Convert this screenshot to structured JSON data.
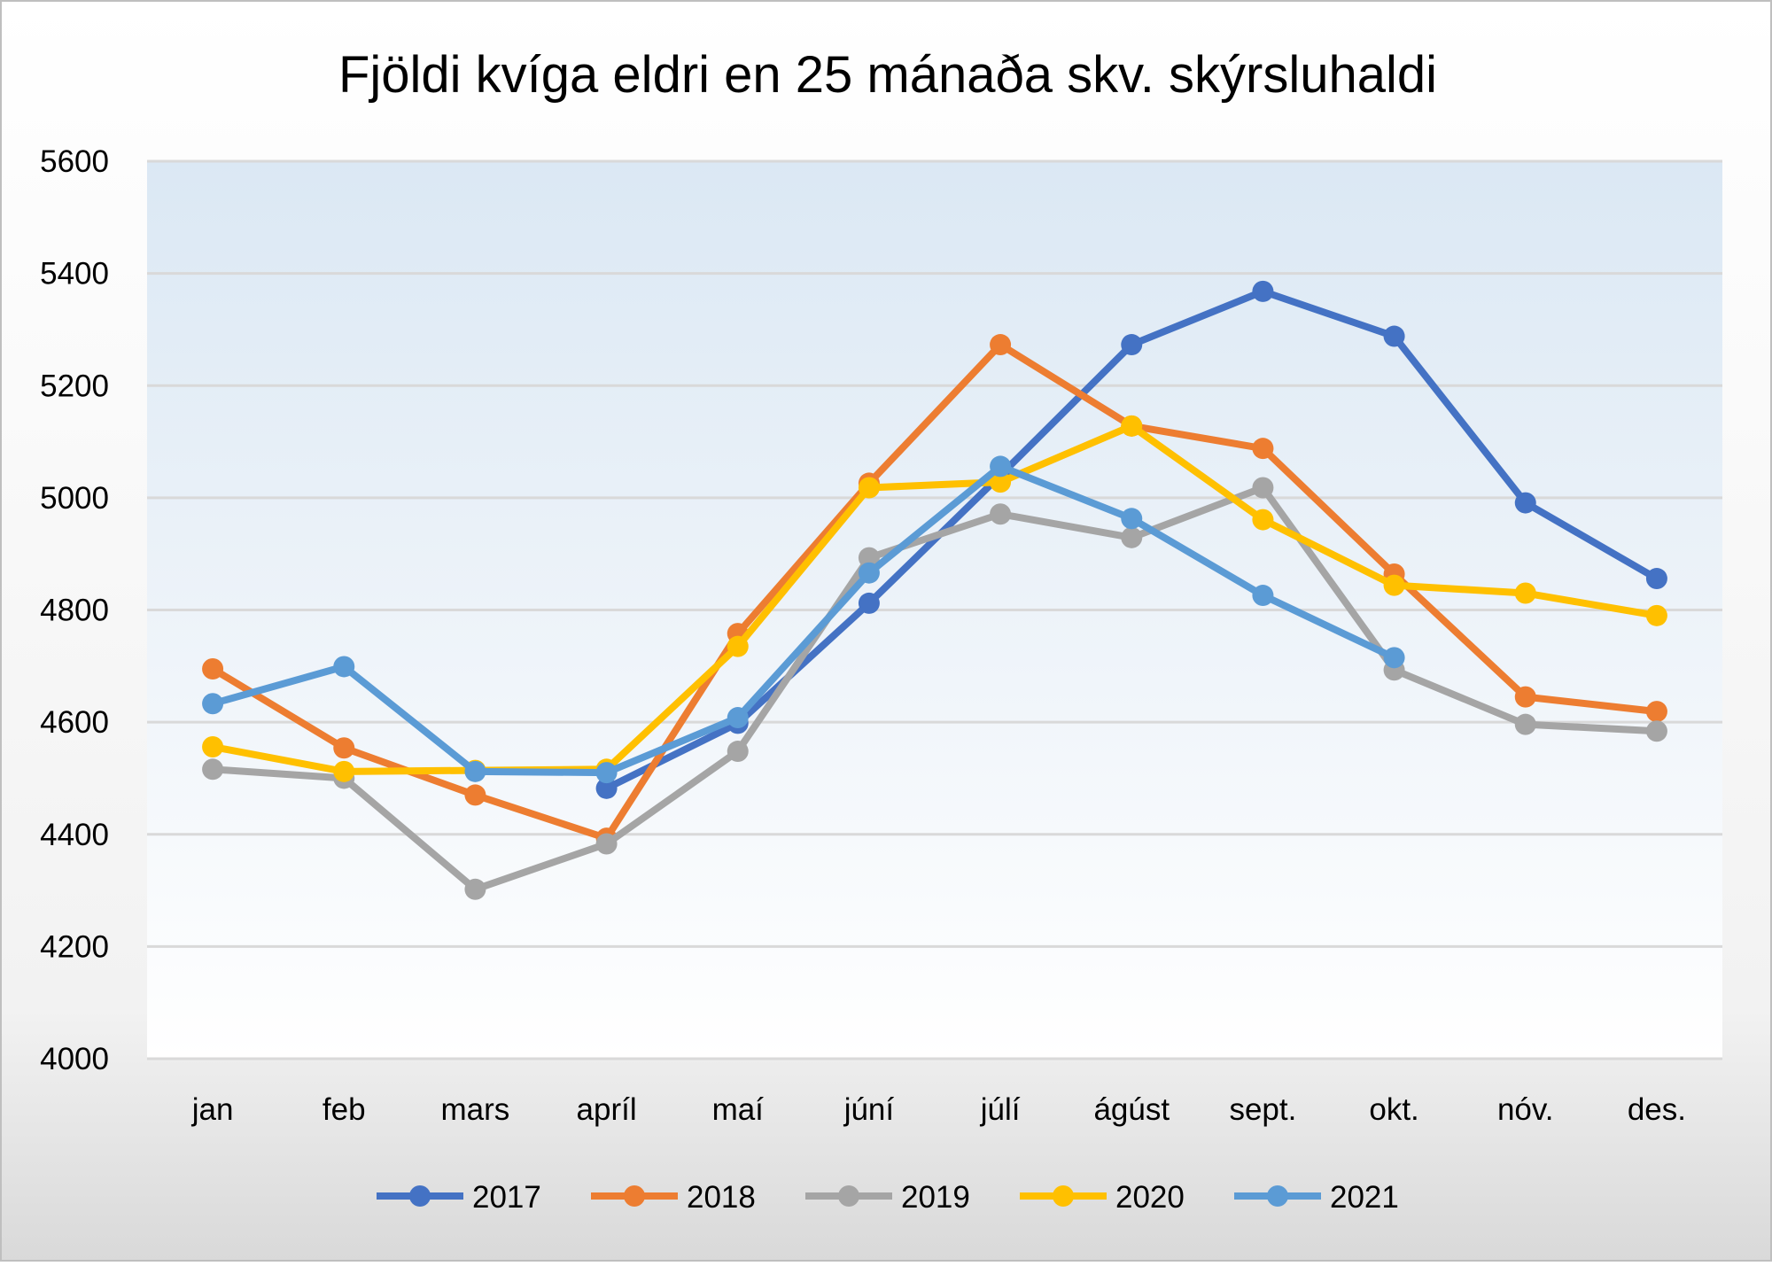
{
  "chart_data": {
    "type": "line",
    "title": "Fjöldi kvíga eldri en 25 mánaða skv. skýrsluhaldi",
    "xlabel": "",
    "ylabel": "",
    "ylim": [
      4000,
      5600
    ],
    "yticks": [
      "4000",
      "4200",
      "4400",
      "4600",
      "4800",
      "5000",
      "5200",
      "5400",
      "5600"
    ],
    "grid": true,
    "legend": "bottom",
    "categories": [
      "jan",
      "feb",
      "mars",
      "apríl",
      "maí",
      "júní",
      "júlí",
      "ágúst",
      "sept.",
      "okt.",
      "nóv.",
      "des."
    ],
    "series": [
      {
        "name": "2017",
        "color": "#4472C4",
        "values": [
          null,
          null,
          null,
          4482,
          4598,
          4812,
          5040,
          5273,
          5368,
          5288,
          4991,
          4856
        ]
      },
      {
        "name": "2018",
        "color": "#ED7D31",
        "values": [
          4695,
          4554,
          4470,
          4393,
          4758,
          5026,
          5273,
          5128,
          5088,
          4864,
          4645,
          4619
        ]
      },
      {
        "name": "2019",
        "color": "#A5A5A5",
        "values": [
          4516,
          4500,
          4302,
          4383,
          4548,
          4893,
          4971,
          4929,
          5018,
          4693,
          4596,
          4584
        ]
      },
      {
        "name": "2020",
        "color": "#FFC000",
        "values": [
          4556,
          4512,
          4514,
          4516,
          4735,
          5018,
          5028,
          5128,
          4961,
          4844,
          4830,
          4790
        ]
      },
      {
        "name": "2021",
        "color": "#5B9BD5",
        "values": [
          4633,
          4699,
          4512,
          4510,
          4608,
          4866,
          5056,
          4963,
          4826,
          4715,
          null,
          null
        ]
      }
    ]
  }
}
